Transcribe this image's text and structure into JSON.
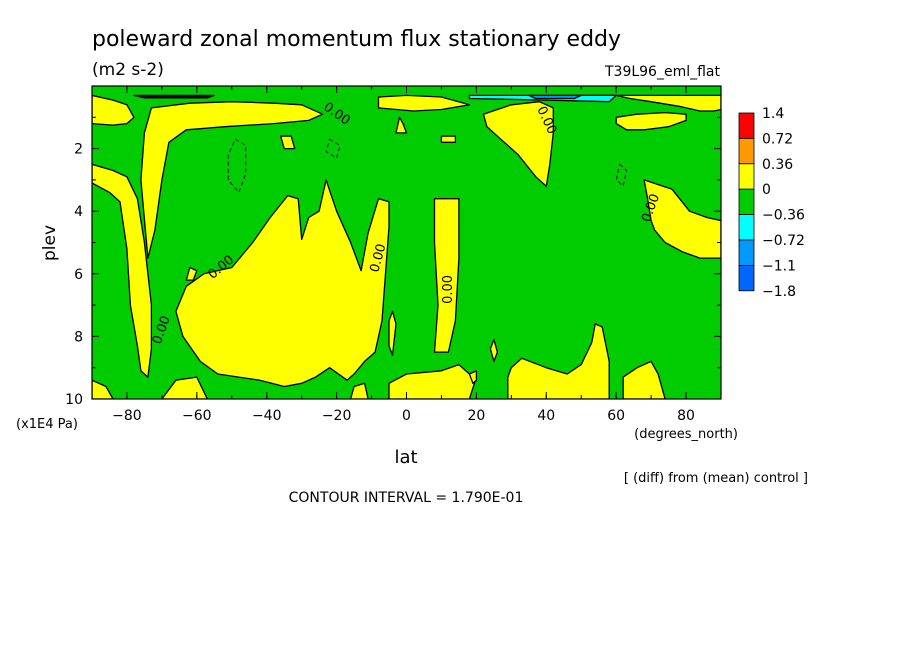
{
  "chart_data": {
    "type": "heatmap",
    "title": "poleward zonal momentum flux stationary eddy",
    "units": "(m2 s-2)",
    "run_label": "T39L96_eml_flat",
    "xlabel": "lat",
    "x_units": "(degrees_north)",
    "ylabel": "plev",
    "y_units": "(x1E4 Pa)",
    "xlim": [
      -90,
      90
    ],
    "ylim": [
      0,
      10
    ],
    "x_ticks": [
      -80,
      -60,
      -40,
      -20,
      0,
      20,
      40,
      60,
      80
    ],
    "y_ticks": [
      2,
      4,
      6,
      8,
      10
    ],
    "y_inverted": true,
    "contour_label": "0.00",
    "contour_interval_text": "CONTOUR INTERVAL = 1.790E-01",
    "diff_note": "[ (diff) from (mean) control ]",
    "colorbar": {
      "levels": [
        "1.4",
        "0.72",
        "0.36",
        "0",
        "−0.36",
        "−0.72",
        "−1.1",
        "−1.8"
      ],
      "colors": [
        "#ff0000",
        "#ff9900",
        "#ffff00",
        "#00cc00",
        "#00ffff",
        "#0099ff",
        "#0066ff"
      ]
    },
    "regions": [
      {
        "sign": "positive",
        "color": "#ffff00",
        "polygon": [
          [
            -90,
            3.1
          ],
          [
            -85,
            3.4
          ],
          [
            -82,
            3.7
          ],
          [
            -80,
            5.2
          ],
          [
            -79,
            7.0
          ],
          [
            -77,
            8.3
          ],
          [
            -76,
            9.1
          ],
          [
            -74,
            9.3
          ],
          [
            -73,
            8.4
          ],
          [
            -73,
            7.0
          ],
          [
            -75,
            5.0
          ],
          [
            -77,
            3.6
          ],
          [
            -80,
            2.9
          ],
          [
            -84,
            2.7
          ],
          [
            -90,
            2.5
          ]
        ]
      },
      {
        "sign": "positive",
        "color": "#ffff00",
        "polygon": [
          [
            -90,
            0.3
          ],
          [
            -84,
            0.45
          ],
          [
            -80,
            0.6
          ],
          [
            -78,
            1.0
          ],
          [
            -80,
            1.2
          ],
          [
            -84,
            1.25
          ],
          [
            -90,
            1.2
          ]
        ]
      },
      {
        "sign": "positive",
        "color": "#ffff00",
        "polygon": [
          [
            -90,
            9.4
          ],
          [
            -86,
            9.6
          ],
          [
            -84,
            10
          ],
          [
            -90,
            10
          ]
        ]
      },
      {
        "sign": "positive",
        "color": "#ffff00",
        "polygon": [
          [
            -73,
            0.7
          ],
          [
            -62,
            0.55
          ],
          [
            -50,
            0.5
          ],
          [
            -38,
            0.55
          ],
          [
            -30,
            0.6
          ],
          [
            -24,
            0.9
          ],
          [
            -28,
            1.1
          ],
          [
            -38,
            1.2
          ],
          [
            -52,
            1.3
          ],
          [
            -63,
            1.4
          ],
          [
            -68,
            1.8
          ],
          [
            -70,
            3.0
          ],
          [
            -72,
            4.6
          ],
          [
            -74,
            5.5
          ],
          [
            -76,
            3.0
          ],
          [
            -75,
            1.5
          ]
        ]
      },
      {
        "sign": "positive",
        "color": "#ffff00",
        "polygon": [
          [
            -34,
            3.5
          ],
          [
            -31,
            3.6
          ],
          [
            -30,
            4.9
          ],
          [
            -28,
            4.2
          ],
          [
            -25,
            4.0
          ],
          [
            -23,
            3.0
          ],
          [
            -20,
            4.0
          ],
          [
            -16,
            5.0
          ],
          [
            -13,
            5.9
          ],
          [
            -11,
            4.7
          ],
          [
            -8,
            3.6
          ],
          [
            -5,
            3.7
          ],
          [
            -5,
            4.5
          ],
          [
            -6,
            6.0
          ],
          [
            -7,
            7.5
          ],
          [
            -9,
            8.5
          ],
          [
            -12,
            8.8
          ],
          [
            -15,
            9.2
          ],
          [
            -17,
            9.4
          ],
          [
            -22,
            9.0
          ],
          [
            -26,
            9.3
          ],
          [
            -30,
            9.5
          ],
          [
            -35,
            9.6
          ],
          [
            -42,
            9.4
          ],
          [
            -48,
            9.3
          ],
          [
            -54,
            9.2
          ],
          [
            -59,
            8.8
          ],
          [
            -64,
            8.0
          ],
          [
            -66,
            7.2
          ],
          [
            -63,
            6.4
          ],
          [
            -58,
            6.0
          ],
          [
            -50,
            5.8
          ],
          [
            -44,
            5.0
          ],
          [
            -39,
            4.2
          ]
        ]
      },
      {
        "sign": "positive",
        "color": "#ffff00",
        "polygon": [
          [
            -66,
            9.4
          ],
          [
            -60,
            9.3
          ],
          [
            -57,
            10
          ],
          [
            -70,
            10
          ]
        ]
      },
      {
        "sign": "positive",
        "color": "#ffff00",
        "polygon": [
          [
            -5,
            9.5
          ],
          [
            0,
            9.2
          ],
          [
            10,
            9.1
          ],
          [
            15,
            8.9
          ],
          [
            18,
            9.2
          ],
          [
            20,
            9.3
          ],
          [
            18,
            10
          ],
          [
            -5,
            10
          ]
        ]
      },
      {
        "sign": "positive",
        "color": "#ffff00",
        "polygon": [
          [
            -15,
            9.6
          ],
          [
            -12,
            9.5
          ],
          [
            -11,
            10
          ],
          [
            -16,
            10
          ]
        ]
      },
      {
        "sign": "positive",
        "color": "#ffff00",
        "polygon": [
          [
            -8,
            0.35
          ],
          [
            0,
            0.3
          ],
          [
            10,
            0.35
          ],
          [
            18,
            0.6
          ],
          [
            10,
            0.75
          ],
          [
            2,
            0.8
          ],
          [
            -8,
            0.7
          ]
        ]
      },
      {
        "sign": "positive",
        "color": "#ffff00",
        "polygon": [
          [
            8,
            3.6
          ],
          [
            15,
            3.6
          ],
          [
            15,
            5.5
          ],
          [
            14,
            7.5
          ],
          [
            12,
            8.5
          ],
          [
            8,
            8.5
          ],
          [
            9,
            7.0
          ],
          [
            8,
            5.0
          ]
        ]
      },
      {
        "sign": "positive",
        "color": "#ffff00",
        "polygon": [
          [
            22,
            0.9
          ],
          [
            30,
            0.6
          ],
          [
            38,
            0.5
          ],
          [
            42,
            0.7
          ],
          [
            42,
            1.5
          ],
          [
            41,
            2.5
          ],
          [
            40,
            3.2
          ],
          [
            37,
            2.9
          ],
          [
            32,
            2.2
          ],
          [
            28,
            1.8
          ],
          [
            23,
            1.3
          ]
        ]
      },
      {
        "sign": "positive",
        "color": "#ffff00",
        "polygon": [
          [
            29,
            9.3
          ],
          [
            30,
            9.0
          ],
          [
            33,
            8.7
          ],
          [
            40,
            9.0
          ],
          [
            46,
            9.2
          ],
          [
            50,
            8.9
          ],
          [
            53,
            8.2
          ],
          [
            54,
            7.6
          ],
          [
            56,
            7.7
          ],
          [
            58,
            8.8
          ],
          [
            58,
            10
          ],
          [
            29,
            10
          ]
        ]
      },
      {
        "sign": "positive",
        "color": "#ffff00",
        "polygon": [
          [
            48,
            0.3
          ],
          [
            54,
            0.3
          ],
          [
            60,
            0.3
          ],
          [
            64,
            0.4
          ],
          [
            70,
            0.5
          ],
          [
            78,
            0.65
          ],
          [
            84,
            0.8
          ],
          [
            88,
            0.8
          ],
          [
            90,
            0.75
          ],
          [
            90,
            0.3
          ]
        ]
      },
      {
        "sign": "positive",
        "color": "#ffff00",
        "polygon": [
          [
            60,
            1.0
          ],
          [
            66,
            0.9
          ],
          [
            74,
            0.85
          ],
          [
            80,
            0.9
          ],
          [
            80,
            1.1
          ],
          [
            75,
            1.3
          ],
          [
            68,
            1.4
          ],
          [
            63,
            1.4
          ],
          [
            60,
            1.2
          ]
        ]
      },
      {
        "sign": "positive",
        "color": "#ffff00",
        "polygon": [
          [
            68,
            3.0
          ],
          [
            76,
            3.3
          ],
          [
            81,
            4.0
          ],
          [
            86,
            4.2
          ],
          [
            90,
            4.3
          ],
          [
            90,
            5.5
          ],
          [
            84,
            5.5
          ],
          [
            79,
            5.3
          ],
          [
            74,
            5.0
          ],
          [
            71,
            4.6
          ],
          [
            70,
            4.3
          ],
          [
            69,
            3.6
          ]
        ]
      },
      {
        "sign": "positive",
        "color": "#ffff00",
        "polygon": [
          [
            62,
            9.3
          ],
          [
            66,
            9.0
          ],
          [
            70,
            8.8
          ],
          [
            72,
            9.2
          ],
          [
            74,
            10
          ],
          [
            62,
            10
          ]
        ]
      },
      {
        "sign": "positive",
        "color": "#ffff00",
        "polygon": [
          [
            -36,
            1.6
          ],
          [
            -33,
            1.6
          ],
          [
            -32,
            2.0
          ],
          [
            -35,
            2.0
          ]
        ]
      },
      {
        "sign": "positive",
        "color": "#ffff00",
        "polygon": [
          [
            -2,
            1.0
          ],
          [
            -1,
            1.2
          ],
          [
            0,
            1.5
          ],
          [
            -3,
            1.5
          ]
        ]
      },
      {
        "sign": "positive",
        "color": "#ffff00",
        "polygon": [
          [
            10,
            1.6
          ],
          [
            14,
            1.6
          ],
          [
            14,
            1.8
          ],
          [
            10,
            1.8
          ]
        ]
      },
      {
        "sign": "positive",
        "color": "#ffff00",
        "polygon": [
          [
            -62,
            5.8
          ],
          [
            -60,
            5.9
          ],
          [
            -61,
            6.2
          ],
          [
            -63,
            6.2
          ]
        ]
      },
      {
        "sign": "positive",
        "color": "#ffff00",
        "polygon": [
          [
            -5,
            7.5
          ],
          [
            -4,
            7.2
          ],
          [
            -3,
            7.6
          ],
          [
            -4,
            8.6
          ],
          [
            -5,
            8.3
          ]
        ]
      },
      {
        "sign": "positive",
        "color": "#ffff00",
        "polygon": [
          [
            24,
            8.4
          ],
          [
            25,
            8.1
          ],
          [
            26,
            8.5
          ],
          [
            25,
            8.8
          ]
        ]
      },
      {
        "sign": "positive",
        "color": "#ffff00",
        "polygon": [
          [
            18,
            9.2
          ],
          [
            20,
            9.1
          ],
          [
            20,
            9.4
          ],
          [
            19,
            9.5
          ]
        ]
      },
      {
        "sign": "negative",
        "color": "#00ffff",
        "polygon": [
          [
            18,
            0.3
          ],
          [
            60,
            0.3
          ],
          [
            58,
            0.5
          ],
          [
            40,
            0.45
          ],
          [
            18,
            0.4
          ]
        ]
      },
      {
        "sign": "negative",
        "color": "#0099ff",
        "polygon": [
          [
            35,
            0.3
          ],
          [
            50,
            0.3
          ],
          [
            48,
            0.4
          ],
          [
            37,
            0.4
          ]
        ]
      },
      {
        "sign": "negative",
        "color": "#000000",
        "polygon": [
          [
            -78,
            0.3
          ],
          [
            -55,
            0.3
          ],
          [
            -57,
            0.38
          ],
          [
            -75,
            0.38
          ]
        ]
      }
    ]
  }
}
